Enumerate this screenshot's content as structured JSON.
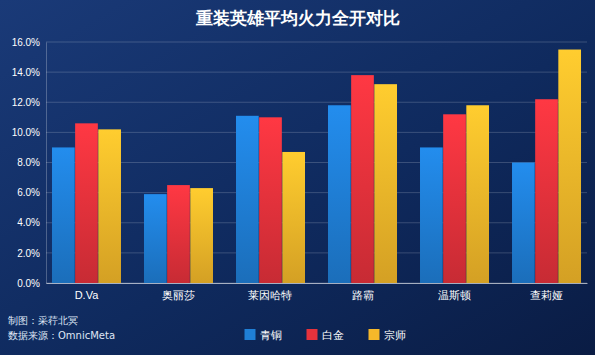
{
  "chart_data": {
    "type": "bar",
    "title": "重装英雄平均火力全开对比",
    "categories": [
      "D.Va",
      "奥丽莎",
      "莱因哈特",
      "路霸",
      "温斯顿",
      "查莉娅"
    ],
    "series": [
      {
        "name": "青铜",
        "color": "#1f7fd6",
        "values": [
          9.0,
          5.9,
          11.1,
          11.8,
          9.0,
          8.0
        ]
      },
      {
        "name": "白金",
        "color": "#e6323c",
        "values": [
          10.6,
          6.5,
          11.0,
          13.8,
          11.2,
          12.2
        ]
      },
      {
        "name": "宗师",
        "color": "#f5b82a",
        "values": [
          10.2,
          6.3,
          8.7,
          13.2,
          11.8,
          15.5
        ]
      }
    ],
    "ylim": [
      0,
      16
    ],
    "yticks": [
      {
        "value": 0,
        "label": "0.0%"
      },
      {
        "value": 2,
        "label": "2.0%"
      },
      {
        "value": 4,
        "label": "4.0%"
      },
      {
        "value": 6,
        "label": "6.0%"
      },
      {
        "value": 8,
        "label": "8.0%"
      },
      {
        "value": 10,
        "label": "10.0%"
      },
      {
        "value": 12,
        "label": "12.0%"
      },
      {
        "value": 14,
        "label": "14.0%"
      },
      {
        "value": 16,
        "label": "16.0%"
      }
    ],
    "grid": true,
    "legend": "bottom",
    "annotations": [
      "制图：采荇北冥",
      "数据来源：OmnicMeta"
    ]
  }
}
